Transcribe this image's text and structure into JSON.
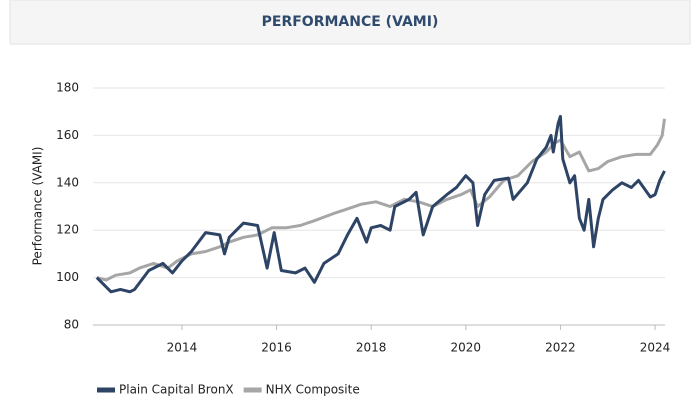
{
  "chart_data": {
    "type": "line",
    "title": "PERFORMANCE (VAMI)",
    "y_label": "Performance (VAMI)",
    "xlim": [
      2012.12,
      2024.21
    ],
    "xticks": [
      2014,
      2016,
      2018,
      2020,
      2022,
      2024
    ],
    "ylim": [
      80,
      180
    ],
    "yticks": [
      80,
      100,
      120,
      140,
      160,
      180
    ],
    "grid": true,
    "legend": "bottom-left",
    "series": [
      {
        "name": "Plain Capital BronX",
        "color": "#2e4466",
        "x": [
          2012.2,
          2012.5,
          2012.7,
          2012.9,
          2013.0,
          2013.3,
          2013.6,
          2013.8,
          2014.0,
          2014.2,
          2014.5,
          2014.8,
          2014.9,
          2015.0,
          2015.3,
          2015.6,
          2015.8,
          2015.95,
          2016.1,
          2016.4,
          2016.6,
          2016.8,
          2017.0,
          2017.3,
          2017.5,
          2017.7,
          2017.9,
          2018.0,
          2018.2,
          2018.4,
          2018.5,
          2018.8,
          2018.95,
          2019.1,
          2019.3,
          2019.6,
          2019.8,
          2020.0,
          2020.15,
          2020.25,
          2020.4,
          2020.6,
          2020.9,
          2021.0,
          2021.3,
          2021.5,
          2021.7,
          2021.8,
          2021.85,
          2021.95,
          2022.0,
          2022.05,
          2022.2,
          2022.3,
          2022.4,
          2022.5,
          2022.6,
          2022.7,
          2022.8,
          2022.9,
          2023.1,
          2023.3,
          2023.5,
          2023.65,
          2023.9,
          2024.0,
          2024.05,
          2024.1,
          2024.2
        ],
        "values": [
          100,
          94,
          95,
          94,
          95,
          103,
          106,
          102,
          107,
          111,
          119,
          118,
          110,
          117,
          123,
          122,
          104,
          119,
          103,
          102,
          104,
          98,
          106,
          110,
          118,
          125,
          115,
          121,
          122,
          120,
          130,
          133,
          136,
          118,
          130,
          135,
          138,
          143,
          140,
          122,
          135,
          141,
          142,
          133,
          140,
          150,
          155,
          160,
          153,
          165,
          168,
          150,
          140,
          143,
          125,
          120,
          133,
          113,
          125,
          133,
          137,
          140,
          138,
          141,
          134,
          135,
          138,
          141,
          145
        ]
      },
      {
        "name": "NHX Composite",
        "color": "#a6a6a6",
        "x": [
          2012.2,
          2012.4,
          2012.6,
          2012.9,
          2013.1,
          2013.4,
          2013.7,
          2013.9,
          2014.2,
          2014.5,
          2014.8,
          2015.0,
          2015.3,
          2015.6,
          2015.9,
          2016.2,
          2016.5,
          2016.8,
          2017.2,
          2017.5,
          2017.8,
          2018.1,
          2018.4,
          2018.7,
          2019.0,
          2019.3,
          2019.6,
          2019.9,
          2020.1,
          2020.25,
          2020.5,
          2020.8,
          2021.1,
          2021.4,
          2021.7,
          2021.9,
          2022.0,
          2022.2,
          2022.4,
          2022.6,
          2022.8,
          2023.0,
          2023.3,
          2023.6,
          2023.9,
          2024.05,
          2024.15,
          2024.2
        ],
        "values": [
          100,
          99,
          101,
          102,
          104,
          106,
          104,
          107,
          110,
          111,
          113,
          115,
          117,
          118,
          121,
          121,
          122,
          124,
          127,
          129,
          131,
          132,
          130,
          133,
          132,
          130,
          133,
          135,
          137,
          130,
          134,
          141,
          143,
          149,
          153,
          157,
          158,
          151,
          153,
          145,
          146,
          149,
          151,
          152,
          152,
          156,
          160,
          167
        ]
      }
    ]
  }
}
